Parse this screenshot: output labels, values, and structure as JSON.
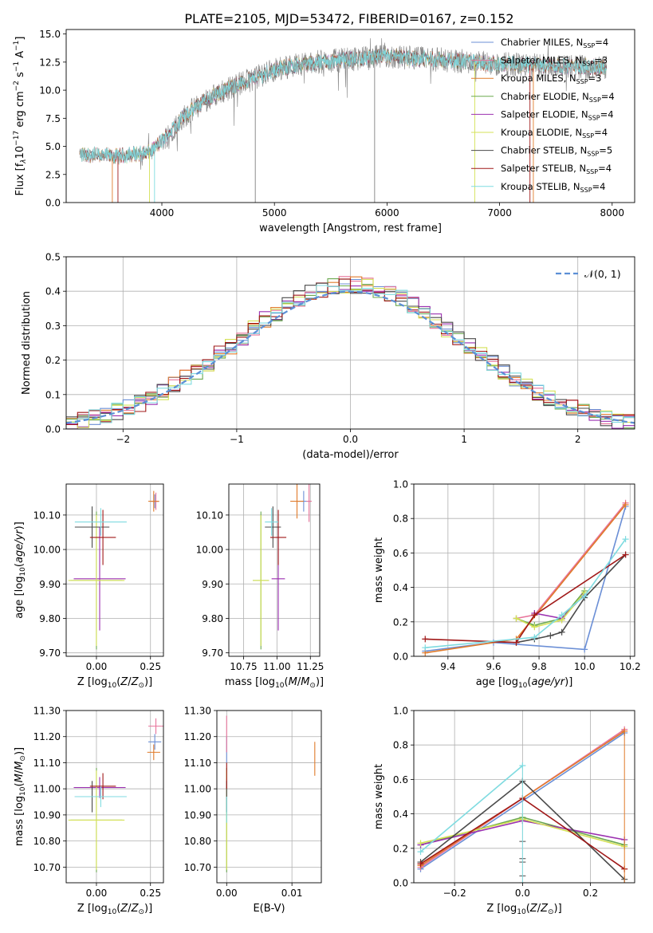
{
  "figure_title": "PLATE=2105, MJD=53472, FIBERID=0167, z=0.152",
  "colors": {
    "Chabrier MILES": "#6b8fd6",
    "Salpeter MILES": "#e8749b",
    "Kroupa MILES": "#e07b2b",
    "Chabrier ELODIE": "#6aa84f",
    "Salpeter ELODIE": "#9b30b0",
    "Kroupa ELODIE": "#d4e157",
    "Chabrier STELIB": "#4a4a4a",
    "Salpeter STELIB": "#a01818",
    "Kroupa STELIB": "#7fdbe0",
    "observed": "#808080",
    "gaussian": "#5b8fd6",
    "grid": "#b0b0b0"
  },
  "chart_data": [
    {
      "id": "spectrum",
      "type": "line",
      "xlabel": "wavelength [Angstrom, rest frame]",
      "ylabel": "Flux [f",
      "ylabel_parts": [
        "Flux [f",
        "λ",
        "10",
        "−17",
        " erg cm",
        "−2",
        " s",
        "−1",
        " A",
        "−1",
        "]"
      ],
      "xlim": [
        3150,
        8200
      ],
      "ylim": [
        0,
        15.4
      ],
      "xticks": [
        4000,
        5000,
        6000,
        7000,
        8000
      ],
      "yticks": [
        0.0,
        2.5,
        5.0,
        7.5,
        10.0,
        12.5,
        15.0
      ],
      "grid": false,
      "legend_placement": "right",
      "legend": [
        {
          "model": "Chabrier MILES",
          "n_ssp": "4"
        },
        {
          "model": "Salpeter MILES",
          "n_ssp": "3"
        },
        {
          "model": "Kroupa MILES",
          "n_ssp": "3"
        },
        {
          "model": "Chabrier ELODIE",
          "n_ssp": "4"
        },
        {
          "model": "Salpeter ELODIE",
          "n_ssp": "4"
        },
        {
          "model": "Kroupa ELODIE",
          "n_ssp": "4"
        },
        {
          "model": "Chabrier STELIB",
          "n_ssp": "5"
        },
        {
          "model": "Salpeter STELIB",
          "n_ssp": "4"
        },
        {
          "model": "Kroupa STELIB",
          "n_ssp": "4"
        }
      ],
      "continuum_x": [
        3270,
        3600,
        3900,
        4000,
        4200,
        4400,
        4600,
        4800,
        5000,
        5200,
        5500,
        6000,
        6500,
        7000,
        7500,
        7950
      ],
      "continuum_y": [
        4.3,
        4.1,
        4.5,
        5.5,
        7.7,
        9.2,
        10.2,
        11.0,
        11.8,
        12.3,
        12.6,
        13.0,
        12.7,
        12.3,
        12.2,
        12.0
      ]
    },
    {
      "id": "residuals",
      "type": "histogram",
      "xlabel": "(data-model)/error",
      "ylabel": "Normed distribution",
      "xlim": [
        -2.5,
        2.5
      ],
      "ylim": [
        0,
        0.5
      ],
      "xticks": [
        -2,
        -1,
        0,
        1,
        2
      ],
      "yticks": [
        0.0,
        0.1,
        0.2,
        0.3,
        0.4,
        0.5
      ],
      "grid": true,
      "legend_placement": "top-right",
      "legend_label": "𝒩(0, 1)",
      "bin_width": 0.1
    },
    {
      "id": "age_vs_Z",
      "type": "scatter",
      "xlabel": "Z [log10(Z/Z⊙)]",
      "ylabel": "age [log10(age/yr)]",
      "xlim": [
        -0.14,
        0.31
      ],
      "ylim": [
        9.69,
        10.19
      ],
      "xticks": [
        0.0,
        0.25
      ],
      "yticks": [
        9.7,
        9.8,
        9.9,
        10.0,
        10.1
      ],
      "grid": true,
      "points": [
        {
          "model": "Chabrier MILES",
          "x": 0.27,
          "y": 10.14,
          "xerr": 0.02,
          "yerr": 0.02
        },
        {
          "model": "Salpeter MILES",
          "x": 0.275,
          "y": 10.14,
          "xerr": 0.015,
          "yerr": 0.025
        },
        {
          "model": "Kroupa MILES",
          "x": 0.265,
          "y": 10.14,
          "xerr": 0.025,
          "yerr": 0.03
        },
        {
          "model": "Chabrier ELODIE",
          "x": 0.0,
          "y": 9.91,
          "xerr": 0.12,
          "yerr": 0.2
        },
        {
          "model": "Salpeter ELODIE",
          "x": 0.015,
          "y": 9.915,
          "xerr": 0.12,
          "yerr": 0.15
        },
        {
          "model": "Kroupa ELODIE",
          "x": 0.0,
          "y": 9.91,
          "xerr": 0.13,
          "yerr": 0.19
        },
        {
          "model": "Chabrier STELIB",
          "x": -0.02,
          "y": 10.065,
          "xerr": 0.08,
          "yerr": 0.06
        },
        {
          "model": "Salpeter STELIB",
          "x": 0.03,
          "y": 10.035,
          "xerr": 0.06,
          "yerr": 0.08
        },
        {
          "model": "Kroupa STELIB",
          "x": 0.02,
          "y": 10.08,
          "xerr": 0.12,
          "yerr": 0.04
        }
      ]
    },
    {
      "id": "age_vs_mass",
      "type": "scatter",
      "xlabel": "mass [log10(M/M⊙)]",
      "ylabel": "",
      "xlim": [
        10.64,
        11.32
      ],
      "ylim": [
        9.69,
        10.19
      ],
      "xticks": [
        10.75,
        11.0,
        11.25
      ],
      "yticks": [
        9.7,
        9.8,
        9.9,
        10.0,
        10.1
      ],
      "grid": true,
      "points": [
        {
          "model": "Chabrier MILES",
          "x": 11.2,
          "y": 10.14,
          "xerr": 0.05,
          "yerr": 0.03
        },
        {
          "model": "Salpeter MILES",
          "x": 11.24,
          "y": 10.14,
          "xerr": 0.02,
          "yerr": 0.06
        },
        {
          "model": "Kroupa MILES",
          "x": 11.15,
          "y": 10.14,
          "xerr": 0.05,
          "yerr": 0.05
        },
        {
          "model": "Chabrier ELODIE",
          "x": 10.88,
          "y": 9.91,
          "xerr": 0.06,
          "yerr": 0.2
        },
        {
          "model": "Salpeter ELODIE",
          "x": 11.01,
          "y": 9.915,
          "xerr": 0.05,
          "yerr": 0.15
        },
        {
          "model": "Kroupa ELODIE",
          "x": 10.88,
          "y": 9.91,
          "xerr": 0.06,
          "yerr": 0.19
        },
        {
          "model": "Chabrier STELIB",
          "x": 10.97,
          "y": 10.065,
          "xerr": 0.06,
          "yerr": 0.06
        },
        {
          "model": "Salpeter STELIB",
          "x": 11.01,
          "y": 10.035,
          "xerr": 0.06,
          "yerr": 0.08
        },
        {
          "model": "Kroupa STELIB",
          "x": 10.96,
          "y": 10.08,
          "xerr": 0.05,
          "yerr": 0.04
        }
      ]
    },
    {
      "id": "mass_weight_vs_age",
      "type": "line",
      "xlabel": "age [log10(age/yr)]",
      "ylabel": "mass weight",
      "xlim": [
        9.25,
        10.22
      ],
      "ylim": [
        0,
        1.0
      ],
      "xticks": [
        9.4,
        9.6,
        9.8,
        10.0,
        10.2
      ],
      "yticks": [
        0.0,
        0.2,
        0.4,
        0.6,
        0.8,
        1.0
      ],
      "grid": true,
      "series": [
        {
          "model": "Chabrier MILES",
          "x": [
            9.3,
            9.6,
            10.0,
            10.18
          ],
          "y": [
            0.03,
            0.08,
            0.04,
            0.87
          ]
        },
        {
          "model": "Salpeter MILES",
          "x": [
            9.7,
            9.78,
            10.18
          ],
          "y": [
            0.22,
            0.24,
            0.89
          ]
        },
        {
          "model": "Kroupa MILES",
          "x": [
            9.3,
            9.7,
            10.18
          ],
          "y": [
            0.02,
            0.1,
            0.88
          ]
        },
        {
          "model": "Chabrier ELODIE",
          "x": [
            9.7,
            9.78,
            9.9,
            10.0
          ],
          "y": [
            0.22,
            0.18,
            0.22,
            0.38
          ]
        },
        {
          "model": "Salpeter ELODIE",
          "x": [
            9.78,
            9.9,
            10.0
          ],
          "y": [
            0.25,
            0.22,
            0.36
          ]
        },
        {
          "model": "Kroupa ELODIE",
          "x": [
            9.7,
            9.78,
            9.9,
            10.0
          ],
          "y": [
            0.22,
            0.17,
            0.21,
            0.37
          ]
        },
        {
          "model": "Chabrier STELIB",
          "x": [
            9.7,
            9.78,
            9.85,
            9.9,
            10.0,
            10.18
          ],
          "y": [
            0.08,
            0.1,
            0.12,
            0.14,
            0.34,
            0.59
          ]
        },
        {
          "model": "Salpeter STELIB",
          "x": [
            9.3,
            9.7,
            9.78,
            10.18
          ],
          "y": [
            0.1,
            0.08,
            0.24,
            0.59
          ]
        },
        {
          "model": "Kroupa STELIB",
          "x": [
            9.3,
            9.78,
            9.9,
            10.0,
            10.18
          ],
          "y": [
            0.05,
            0.11,
            0.24,
            0.35,
            0.68
          ]
        }
      ]
    },
    {
      "id": "mass_vs_Z",
      "type": "scatter",
      "xlabel": "Z [log10(Z/Z⊙)]",
      "ylabel": "mass [log10(M/M⊙)]",
      "xlim": [
        -0.14,
        0.31
      ],
      "ylim": [
        10.64,
        11.3
      ],
      "xticks": [
        0.0,
        0.25
      ],
      "yticks": [
        10.7,
        10.8,
        10.9,
        11.0,
        11.1,
        11.2,
        11.3
      ],
      "grid": true,
      "points": [
        {
          "model": "Chabrier MILES",
          "x": 0.27,
          "y": 11.18,
          "xerr": 0.03,
          "yerr": 0.03
        },
        {
          "model": "Salpeter MILES",
          "x": 0.275,
          "y": 11.24,
          "xerr": 0.035,
          "yerr": 0.03
        },
        {
          "model": "Kroupa MILES",
          "x": 0.265,
          "y": 11.14,
          "xerr": 0.03,
          "yerr": 0.03
        },
        {
          "model": "Chabrier ELODIE",
          "x": 0.0,
          "y": 10.88,
          "xerr": 0.12,
          "yerr": 0.2
        },
        {
          "model": "Salpeter ELODIE",
          "x": 0.015,
          "y": 11.005,
          "xerr": 0.12,
          "yerr": 0.04
        },
        {
          "model": "Kroupa ELODIE",
          "x": 0.0,
          "y": 10.88,
          "xerr": 0.13,
          "yerr": 0.19
        },
        {
          "model": "Chabrier STELIB",
          "x": -0.02,
          "y": 10.97,
          "xerr": 0.08,
          "yerr": 0.06
        },
        {
          "model": "Salpeter STELIB",
          "x": 0.03,
          "y": 11.01,
          "xerr": 0.06,
          "yerr": 0.05
        },
        {
          "model": "Kroupa STELIB",
          "x": 0.02,
          "y": 10.97,
          "xerr": 0.12,
          "yerr": 0.04
        }
      ]
    },
    {
      "id": "mass_vs_ebv",
      "type": "scatter",
      "xlabel": "E(B-V)",
      "ylabel": "",
      "xlim": [
        -0.0015,
        0.0145
      ],
      "ylim": [
        10.64,
        11.3
      ],
      "xticks": [
        0.0,
        0.01
      ],
      "yticks": [
        10.7,
        10.8,
        10.9,
        11.0,
        11.1,
        11.2,
        11.3
      ],
      "grid": true,
      "points": [
        {
          "model": "Chabrier MILES",
          "x": 0.0,
          "y": 11.15,
          "xerr": 0,
          "yerr": 0.05
        },
        {
          "model": "Salpeter MILES",
          "x": 0.0,
          "y": 11.21,
          "xerr": 0,
          "yerr": 0.07
        },
        {
          "model": "Kroupa MILES",
          "x": 0.0135,
          "y": 11.115,
          "xerr": 0,
          "yerr": 0.065
        },
        {
          "model": "Chabrier ELODIE",
          "x": 0.0,
          "y": 10.88,
          "xerr": 0,
          "yerr": 0.2
        },
        {
          "model": "Salpeter ELODIE",
          "x": 0.0,
          "y": 11.0,
          "xerr": 0,
          "yerr": 0.04
        },
        {
          "model": "Kroupa ELODIE",
          "x": 0.0,
          "y": 10.88,
          "xerr": 0,
          "yerr": 0.19
        },
        {
          "model": "Chabrier STELIB",
          "x": 0.0,
          "y": 10.97,
          "xerr": 0,
          "yerr": 0.06
        },
        {
          "model": "Salpeter STELIB",
          "x": 0.0,
          "y": 11.05,
          "xerr": 0,
          "yerr": 0.05
        },
        {
          "model": "Kroupa STELIB",
          "x": 0.0,
          "y": 10.92,
          "xerr": 0,
          "yerr": 0.05
        }
      ]
    },
    {
      "id": "mass_weight_vs_Z",
      "type": "line",
      "xlabel": "Z [log10(Z/Z⊙)]",
      "ylabel": "mass weight",
      "xlim": [
        -0.32,
        0.33
      ],
      "ylim": [
        0,
        1.0
      ],
      "xticks": [
        -0.2,
        0.0,
        0.2
      ],
      "yticks": [
        0.0,
        0.2,
        0.4,
        0.6,
        0.8,
        1.0
      ],
      "grid": true,
      "series": [
        {
          "model": "Chabrier MILES",
          "x": [
            -0.3,
            0.3
          ],
          "y": [
            0.08,
            0.87
          ]
        },
        {
          "model": "Salpeter MILES",
          "x": [
            -0.3,
            0.3
          ],
          "y": [
            0.09,
            0.89
          ]
        },
        {
          "model": "Kroupa MILES",
          "x": [
            -0.3,
            0.3
          ],
          "y": [
            0.1,
            0.88
          ]
        },
        {
          "model": "Chabrier ELODIE",
          "x": [
            -0.3,
            0.0,
            0.3
          ],
          "y": [
            0.22,
            0.38,
            0.22
          ]
        },
        {
          "model": "Salpeter ELODIE",
          "x": [
            -0.3,
            0.0,
            0.3
          ],
          "y": [
            0.22,
            0.36,
            0.25
          ]
        },
        {
          "model": "Kroupa ELODIE",
          "x": [
            -0.3,
            0.0,
            0.3
          ],
          "y": [
            0.23,
            0.37,
            0.21
          ]
        },
        {
          "model": "Chabrier STELIB",
          "x": [
            -0.3,
            0.0,
            0.3
          ],
          "y": [
            0.12,
            0.59,
            0.02
          ]
        },
        {
          "model": "Salpeter STELIB",
          "x": [
            -0.3,
            0.0,
            0.3
          ],
          "y": [
            0.11,
            0.49,
            0.08
          ]
        },
        {
          "model": "Kroupa STELIB",
          "x": [
            -0.3,
            0.0
          ],
          "y": [
            0.18,
            0.68
          ]
        }
      ],
      "error_ticks_at_zero": [
        0.0,
        0.04,
        0.12,
        0.14,
        0.24
      ]
    }
  ]
}
